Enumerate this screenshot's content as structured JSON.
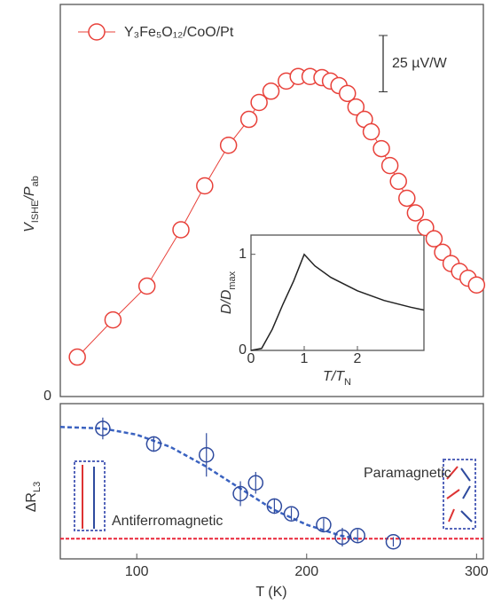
{
  "chart_data": [
    {
      "type": "scatter",
      "series": [
        {
          "name": "Y₃Fe₅O₁₂/CoO/Pt",
          "color": "#e8413a",
          "x": [
            65,
            86,
            106,
            126,
            140,
            154,
            166,
            172,
            179,
            188,
            195,
            202,
            209,
            214,
            219,
            224,
            229,
            234,
            238,
            244,
            249,
            254,
            259,
            264,
            270,
            275,
            280,
            285,
            290,
            295,
            300
          ],
          "values": [
            0.35,
            0.68,
            0.98,
            1.48,
            1.87,
            2.23,
            2.46,
            2.61,
            2.71,
            2.8,
            2.84,
            2.84,
            2.83,
            2.8,
            2.76,
            2.69,
            2.57,
            2.46,
            2.35,
            2.2,
            2.05,
            1.91,
            1.76,
            1.63,
            1.5,
            1.4,
            1.28,
            1.18,
            1.11,
            1.05,
            0.99
          ]
        }
      ],
      "ylabel": [
        "V",
        "ISHE",
        "/P",
        "ab"
      ],
      "xlim": [
        55,
        304
      ],
      "ylim": [
        0,
        3.48
      ],
      "yticks": [
        0
      ],
      "scale_bar": {
        "label": "25 µV/W",
        "value": 0.5
      }
    },
    {
      "type": "line",
      "color": "#222222",
      "x": [
        0,
        0.2,
        0.4,
        0.6,
        0.8,
        0.9,
        1.0,
        1.2,
        1.5,
        2.0,
        2.5,
        3.0,
        3.25
      ],
      "values": [
        0,
        0.02,
        0.22,
        0.48,
        0.72,
        0.86,
        1.0,
        0.88,
        0.76,
        0.62,
        0.52,
        0.45,
        0.42
      ],
      "xlabel": [
        "T/T",
        "N"
      ],
      "ylabel": [
        "D/D",
        "max"
      ],
      "xlim": [
        0,
        3.25
      ],
      "ylim": [
        0,
        1.2
      ],
      "xticks": [
        0,
        1,
        2
      ],
      "yticks": [
        0,
        1
      ]
    },
    {
      "type": "scatter",
      "color": "#2e4a9e",
      "x": [
        80,
        110,
        141,
        161,
        170,
        181,
        191,
        210,
        221,
        230,
        251
      ],
      "values": [
        0.84,
        0.74,
        0.67,
        0.42,
        0.49,
        0.34,
        0.29,
        0.22,
        0.14,
        0.15,
        0.11
      ],
      "errors": [
        0.07,
        0.05,
        0.14,
        0.08,
        0.07,
        0.05,
        0.04,
        0.04,
        0.06,
        0.04,
        0.03
      ],
      "fit": {
        "x": [
          55,
          80,
          100,
          120,
          140,
          160,
          180,
          200,
          220,
          230
        ],
        "values": [
          0.85,
          0.84,
          0.8,
          0.72,
          0.6,
          0.46,
          0.32,
          0.22,
          0.15,
          0.13
        ]
      },
      "baseline": 0.13,
      "baseline_color": "#e8273a",
      "ylabel": [
        "ΔR",
        "L3"
      ],
      "xlabel": "T (K)",
      "xlim": [
        55,
        304
      ],
      "xticks": [
        100,
        200,
        300
      ],
      "ylim": [
        0,
        1
      ],
      "annotations": [
        "Antiferromagnetic",
        "Paramagnetic"
      ]
    }
  ]
}
